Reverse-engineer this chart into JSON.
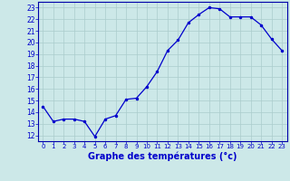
{
  "x": [
    0,
    1,
    2,
    3,
    4,
    5,
    6,
    7,
    8,
    9,
    10,
    11,
    12,
    13,
    14,
    15,
    16,
    17,
    18,
    19,
    20,
    21,
    22,
    23
  ],
  "y": [
    14.5,
    13.2,
    13.4,
    13.4,
    13.2,
    11.9,
    13.4,
    13.7,
    15.1,
    15.2,
    16.2,
    17.5,
    19.3,
    20.2,
    21.7,
    22.4,
    23.0,
    22.9,
    22.2,
    22.2,
    22.2,
    21.5,
    20.3,
    19.3
  ],
  "line_color": "#0000cc",
  "marker": ".",
  "marker_size": 3,
  "line_width": 0.9,
  "xlabel": "Graphe des températures (°c)",
  "xlabel_fontsize": 7,
  "xlim": [
    -0.5,
    23.5
  ],
  "ylim": [
    11.5,
    23.5
  ],
  "yticks": [
    12,
    13,
    14,
    15,
    16,
    17,
    18,
    19,
    20,
    21,
    22,
    23
  ],
  "xticks": [
    0,
    1,
    2,
    3,
    4,
    5,
    6,
    7,
    8,
    9,
    10,
    11,
    12,
    13,
    14,
    15,
    16,
    17,
    18,
    19,
    20,
    21,
    22,
    23
  ],
  "xtick_fontsize": 5,
  "ytick_fontsize": 5.5,
  "grid_color": "#aacccc",
  "bg_color": "#cce8e8",
  "axes_color": "#0000aa",
  "tick_color": "#0000cc",
  "label_color": "#0000cc"
}
